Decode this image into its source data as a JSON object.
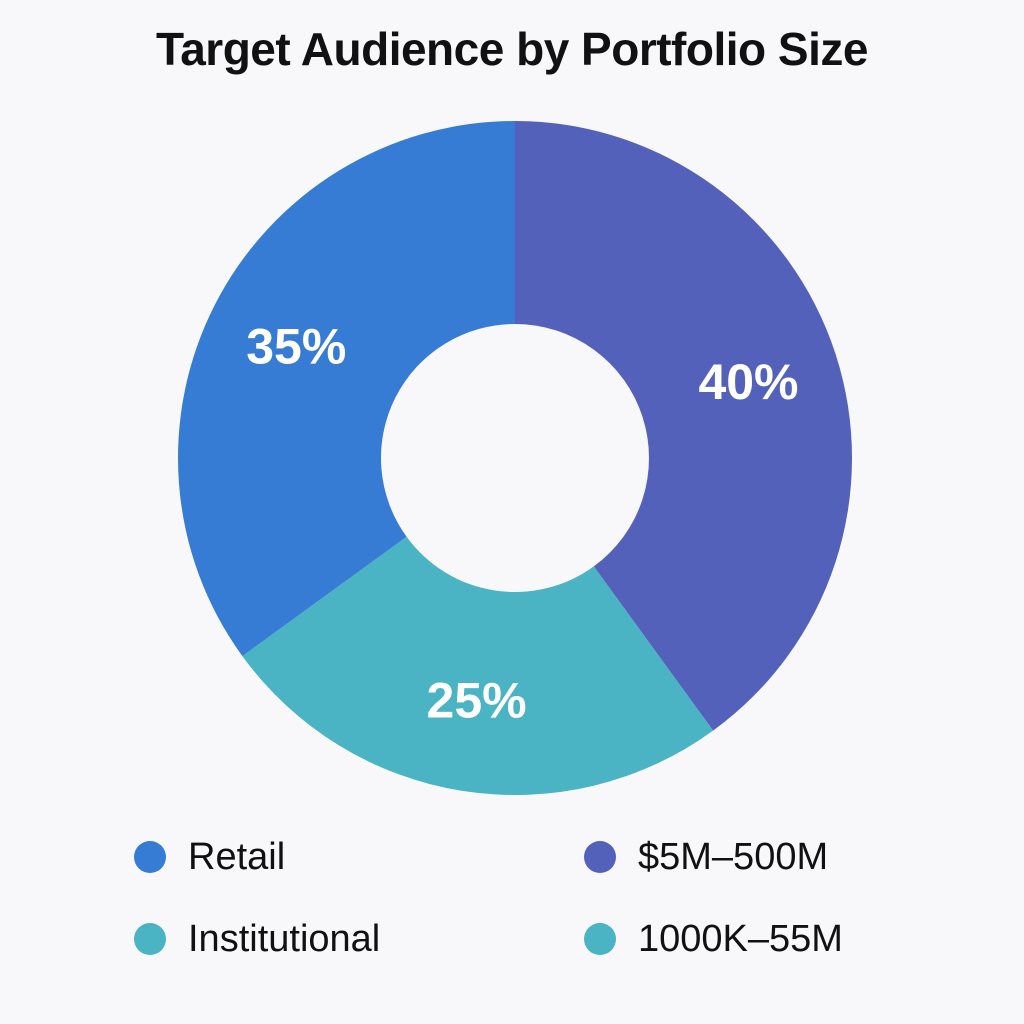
{
  "chart_data": {
    "type": "pie",
    "title": "Target Audience by Portfolio Size",
    "donut": true,
    "slices": [
      {
        "label": "40%",
        "value": 40,
        "color": "#5461ba"
      },
      {
        "label": "25%",
        "value": 25,
        "color": "#4ab3c4"
      },
      {
        "label": "35%",
        "value": 35,
        "color": "#367cd4"
      }
    ],
    "legend": [
      {
        "label": "Retail",
        "color": "#367cd4"
      },
      {
        "label": "$5M–500M",
        "color": "#5461ba"
      },
      {
        "label": "Institutional",
        "color": "#4ab3c4"
      },
      {
        "label": "1000K–55M",
        "color": "#4ab3c4"
      }
    ],
    "legend_position": "bottom"
  }
}
